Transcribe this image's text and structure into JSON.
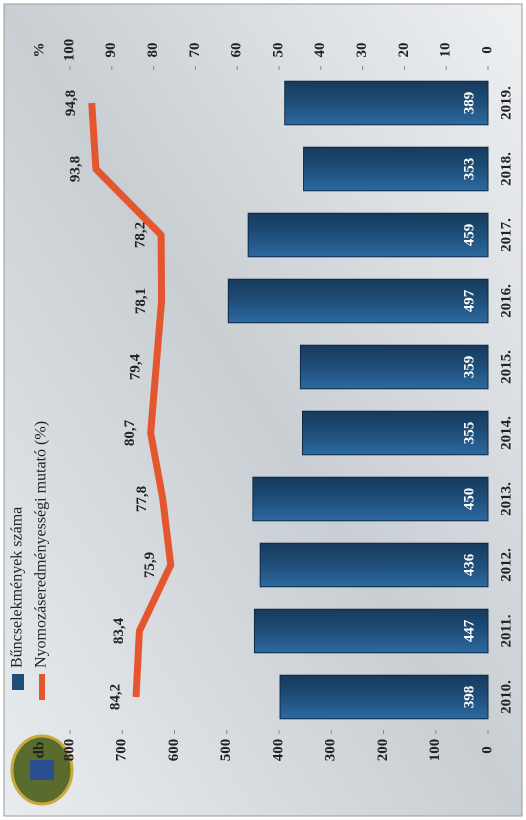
{
  "chart_data": {
    "type": "bar_line",
    "categories": [
      "2010.",
      "2011.",
      "2012.",
      "2013.",
      "2014.",
      "2015.",
      "2016.",
      "2017.",
      "2018.",
      "2019."
    ],
    "y_label": "db",
    "y2_label": "%",
    "series": [
      {
        "name": "Bűncselekmények száma",
        "type": "bar",
        "color": "#1f4e79",
        "values": [
          398,
          447,
          436,
          450,
          355,
          359,
          497,
          459,
          353,
          389
        ]
      },
      {
        "name": "Nyomozáseredményességi mutató (%)",
        "type": "line",
        "axis": "y2",
        "color": "#e4572e",
        "values": [
          84.2,
          83.4,
          75.9,
          77.8,
          80.7,
          79.4,
          78.1,
          78.2,
          93.8,
          94.8
        ],
        "value_labels": [
          "84,2",
          "83,4",
          "75,9",
          "77,8",
          "80,7",
          "79,4",
          "78,1",
          "78,2",
          "93,8",
          "94,8"
        ]
      }
    ],
    "ylim": [
      0,
      800
    ],
    "yticks": [
      0,
      100,
      200,
      300,
      400,
      500,
      600,
      700,
      800
    ],
    "y2lim": [
      0,
      100
    ],
    "y2ticks": [
      0,
      10,
      20,
      30,
      40,
      50,
      60,
      70,
      80,
      90,
      100
    ],
    "legend": "top-left"
  }
}
